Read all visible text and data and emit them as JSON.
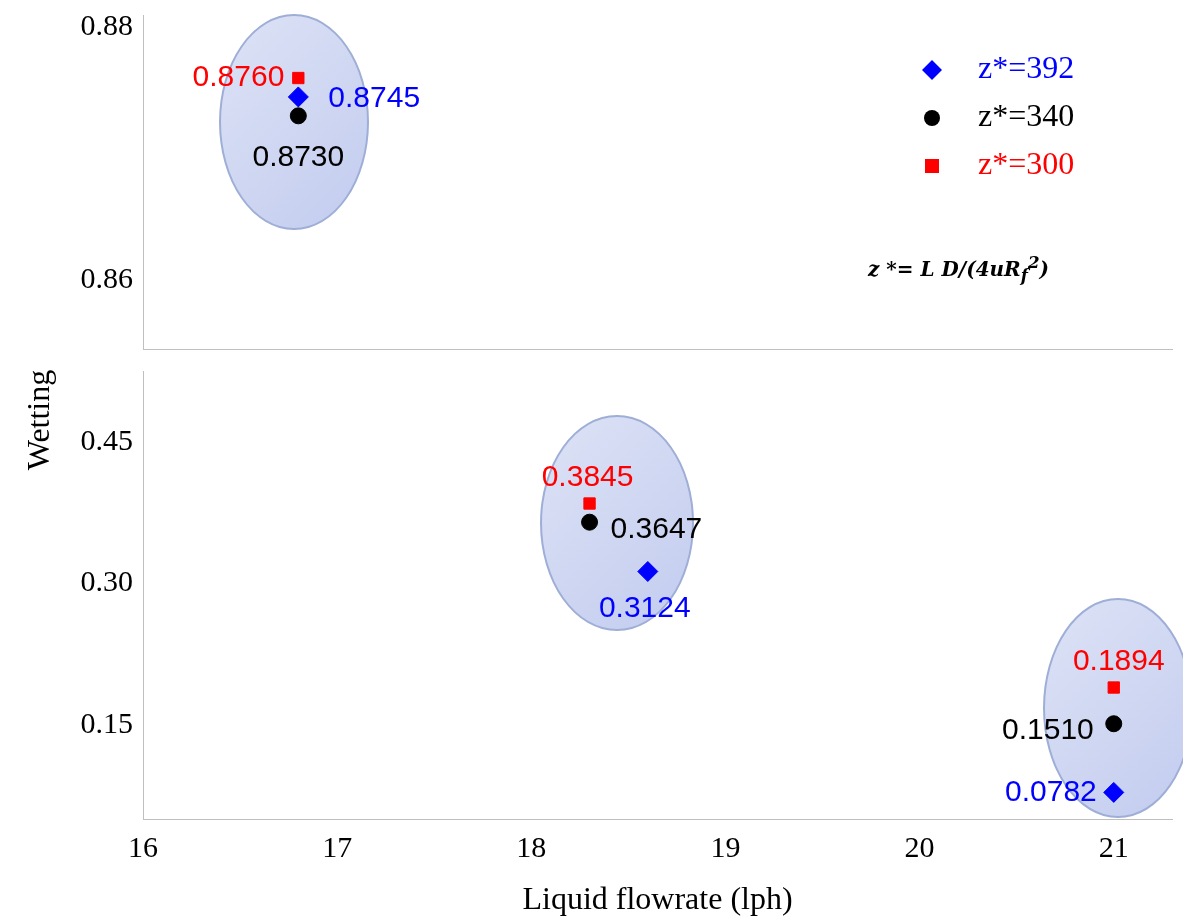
{
  "chart_data": [
    {
      "type": "scatter",
      "xlim": [
        16,
        21.3
      ],
      "ylim": [
        0.8545,
        0.881
      ],
      "yticks": [
        0.88,
        0.86
      ],
      "tick_labels": "y",
      "grid": false,
      "legend": "top right",
      "annotations": [
        "z *= L D/(4uR$_{f}$$^{2}$)"
      ],
      "series": [
        {
          "name": "z*=392",
          "color": "#0000ff",
          "marker": "diamond",
          "x": [
            16.8
          ],
          "values": [
            0.8745
          ],
          "value_labels": [
            "0.8745"
          ]
        },
        {
          "name": "z*=340",
          "color": "#000000",
          "marker": "circle",
          "x": [
            16.8
          ],
          "values": [
            0.873
          ],
          "value_labels": [
            "0.8730"
          ]
        },
        {
          "name": "z*=300",
          "color": "#ff0000",
          "marker": "square",
          "x": [
            16.8
          ],
          "values": [
            0.876
          ],
          "value_labels": [
            "0.8760"
          ]
        }
      ]
    },
    {
      "type": "scatter",
      "xlim": [
        16,
        21.3
      ],
      "ylim": [
        0.05,
        0.525
      ],
      "xticks": [
        16,
        17,
        18,
        19,
        20,
        21
      ],
      "yticks": [
        0.45,
        {
          "value": 0.3,
          "label": "0.30"
        },
        0.15
      ],
      "xlabel": "Liquid flowrate (lph)",
      "ylabel": "Wetting",
      "grid": false,
      "legend": false,
      "series": [
        {
          "color": "#0000ff",
          "marker": "diamond",
          "x": [
            18.6,
            21
          ],
          "values": [
            0.3124,
            0.0782
          ],
          "value_labels": [
            "0.3124",
            "0.0782"
          ]
        },
        {
          "color": "#000000",
          "marker": "circle",
          "x": [
            18.3,
            21
          ],
          "values": [
            0.3647,
            0.151
          ],
          "value_labels": [
            "0.3647",
            "0.1510"
          ]
        },
        {
          "color": "#ff0000",
          "marker": "square",
          "x": [
            18.3,
            21
          ],
          "values": [
            0.3845,
            0.1894
          ],
          "value_labels": [
            "0.3845",
            "0.1894"
          ]
        }
      ]
    }
  ]
}
